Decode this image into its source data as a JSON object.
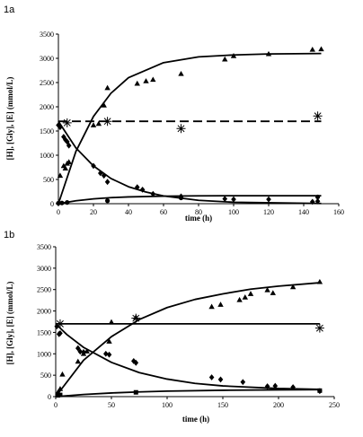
{
  "chart_data": [
    {
      "type": "scatter",
      "panel_label": "1a",
      "xlabel": "time (h)",
      "ylabel": "[H], [Gly], [E] (mmol/L)",
      "xlim": [
        0,
        160
      ],
      "ylim": [
        0,
        3500
      ],
      "xticks": [
        "0",
        "20",
        "40",
        "60",
        "80",
        "100",
        "120",
        "140",
        "160"
      ],
      "yticks": [
        "0",
        "500",
        "1000",
        "1500",
        "2000",
        "2500",
        "3000",
        "3500"
      ],
      "grid": false,
      "legend": "none",
      "series": [
        {
          "marker": "triangle",
          "points": [
            [
              1,
              580
            ],
            [
              3,
              780
            ],
            [
              4,
              730
            ],
            [
              5,
              830
            ],
            [
              6,
              860
            ],
            [
              20,
              1620
            ],
            [
              23,
              1650
            ],
            [
              26,
              2030
            ],
            [
              28,
              2390
            ],
            [
              45,
              2480
            ],
            [
              50,
              2530
            ],
            [
              54,
              2560
            ],
            [
              70,
              2680
            ],
            [
              95,
              2980
            ],
            [
              100,
              3050
            ],
            [
              120,
              3090
            ],
            [
              145,
              3180
            ],
            [
              150,
              3190
            ]
          ]
        },
        {
          "marker": "diamond",
          "points": [
            [
              0,
              1620
            ],
            [
              1,
              1580
            ],
            [
              3,
              1380
            ],
            [
              4,
              1320
            ],
            [
              5,
              1280
            ],
            [
              6,
              1200
            ],
            [
              20,
              780
            ],
            [
              24,
              630
            ],
            [
              26,
              580
            ],
            [
              28,
              450
            ],
            [
              45,
              340
            ],
            [
              48,
              290
            ],
            [
              54,
              200
            ],
            [
              70,
              150
            ],
            [
              95,
              100
            ],
            [
              100,
              90
            ],
            [
              120,
              90
            ],
            [
              145,
              40
            ],
            [
              148,
              50
            ]
          ]
        },
        {
          "marker": "circle",
          "points": [
            [
              0,
              10
            ],
            [
              2,
              15
            ],
            [
              5,
              25
            ],
            [
              28,
              60
            ],
            [
              70,
              120
            ],
            [
              148,
              140
            ]
          ]
        },
        {
          "marker": "asterisk",
          "points": [
            [
              5,
              1670
            ],
            [
              28,
              1700
            ],
            [
              70,
              1550
            ],
            [
              148,
              1810
            ]
          ]
        }
      ],
      "fits": [
        {
          "style": "solid",
          "points": [
            [
              0,
              0
            ],
            [
              10,
              1080
            ],
            [
              20,
              1800
            ],
            [
              30,
              2280
            ],
            [
              40,
              2600
            ],
            [
              60,
              2910
            ],
            [
              80,
              3030
            ],
            [
              100,
              3070
            ],
            [
              120,
              3090
            ],
            [
              150,
              3100
            ]
          ]
        },
        {
          "style": "solid",
          "points": [
            [
              0,
              1700
            ],
            [
              10,
              1150
            ],
            [
              20,
              780
            ],
            [
              30,
              520
            ],
            [
              40,
              350
            ],
            [
              50,
              240
            ],
            [
              60,
              160
            ],
            [
              80,
              70
            ],
            [
              100,
              30
            ],
            [
              150,
              5
            ]
          ]
        },
        {
          "style": "solid",
          "points": [
            [
              0,
              0
            ],
            [
              10,
              60
            ],
            [
              20,
              100
            ],
            [
              30,
              125
            ],
            [
              40,
              140
            ],
            [
              60,
              155
            ],
            [
              80,
              162
            ],
            [
              100,
              165
            ],
            [
              150,
              165
            ]
          ]
        },
        {
          "style": "dashed",
          "points": [
            [
              0,
              1700
            ],
            [
              150,
              1700
            ]
          ]
        }
      ]
    },
    {
      "type": "scatter",
      "panel_label": "1b",
      "xlabel": "time (h)",
      "ylabel": "[H], [Gly], [E] (mmol/L)",
      "xlim": [
        0,
        250
      ],
      "ylim": [
        0,
        3500
      ],
      "xticks": [
        "0",
        "50",
        "100",
        "150",
        "200",
        "250"
      ],
      "yticks": [
        "0",
        "500",
        "1000",
        "1500",
        "2000",
        "2500",
        "3000",
        "3500"
      ],
      "grid": false,
      "legend": "none",
      "series": [
        {
          "marker": "triangle",
          "points": [
            [
              2,
              100
            ],
            [
              4,
              180
            ],
            [
              6,
              520
            ],
            [
              20,
              820
            ],
            [
              25,
              1000
            ],
            [
              28,
              1060
            ],
            [
              48,
              1290
            ],
            [
              50,
              1740
            ],
            [
              72,
              1850
            ],
            [
              140,
              2100
            ],
            [
              148,
              2150
            ],
            [
              165,
              2260
            ],
            [
              170,
              2320
            ],
            [
              175,
              2400
            ],
            [
              190,
              2490
            ],
            [
              195,
              2420
            ],
            [
              213,
              2560
            ],
            [
              237,
              2680
            ]
          ]
        },
        {
          "marker": "diamond",
          "points": [
            [
              1,
              1640
            ],
            [
              3,
              1460
            ],
            [
              4,
              1480
            ],
            [
              20,
              1130
            ],
            [
              22,
              1050
            ],
            [
              25,
              1040
            ],
            [
              45,
              1000
            ],
            [
              48,
              980
            ],
            [
              70,
              830
            ],
            [
              72,
              790
            ],
            [
              140,
              450
            ],
            [
              148,
              400
            ],
            [
              168,
              340
            ],
            [
              190,
              240
            ],
            [
              197,
              250
            ],
            [
              213,
              220
            ],
            [
              237,
              130
            ]
          ]
        },
        {
          "marker": "square",
          "points": [
            [
              2,
              30
            ],
            [
              4,
              40
            ],
            [
              72,
              100
            ],
            [
              237,
              140
            ]
          ]
        },
        {
          "marker": "asterisk",
          "points": [
            [
              4,
              1700
            ],
            [
              72,
              1830
            ],
            [
              237,
              1600
            ]
          ]
        }
      ],
      "fits": [
        {
          "style": "solid",
          "points": [
            [
              0,
              0
            ],
            [
              25,
              850
            ],
            [
              50,
              1400
            ],
            [
              75,
              1800
            ],
            [
              100,
              2080
            ],
            [
              125,
              2270
            ],
            [
              150,
              2400
            ],
            [
              175,
              2510
            ],
            [
              200,
              2580
            ],
            [
              237,
              2660
            ]
          ]
        },
        {
          "style": "solid",
          "points": [
            [
              0,
              1700
            ],
            [
              10,
              1450
            ],
            [
              25,
              1150
            ],
            [
              50,
              800
            ],
            [
              75,
              560
            ],
            [
              100,
              410
            ],
            [
              125,
              310
            ],
            [
              150,
              250
            ],
            [
              200,
              190
            ],
            [
              237,
              170
            ]
          ]
        },
        {
          "style": "solid",
          "points": [
            [
              0,
              0
            ],
            [
              25,
              50
            ],
            [
              50,
              85
            ],
            [
              75,
              110
            ],
            [
              100,
              128
            ],
            [
              150,
              148
            ],
            [
              200,
              158
            ],
            [
              237,
              162
            ]
          ]
        },
        {
          "style": "solid",
          "points": [
            [
              0,
              1700
            ],
            [
              237,
              1700
            ]
          ]
        }
      ]
    }
  ]
}
